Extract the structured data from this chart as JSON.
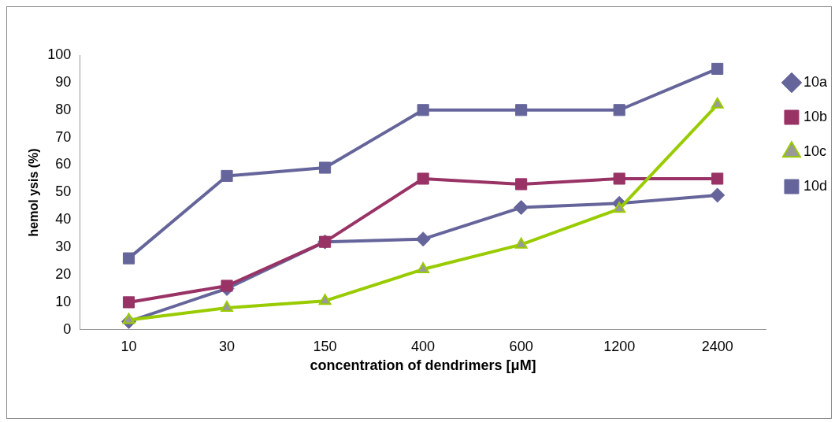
{
  "chart_data": {
    "type": "line",
    "xlabel": "concentration of dendrimers [μM]",
    "ylabel": "hemol ysis (%)",
    "categories": [
      "10",
      "30",
      "150",
      "400",
      "600",
      "1200",
      "2400"
    ],
    "series": [
      {
        "name": "10a",
        "color": "#65659b",
        "marker": "diamond",
        "values": [
          3,
          15,
          32,
          33,
          44.5,
          46,
          49
        ]
      },
      {
        "name": "10b",
        "color": "#993366",
        "marker": "square",
        "values": [
          10,
          16,
          32,
          55,
          53,
          55,
          55
        ]
      },
      {
        "name": "10c",
        "color": "#99cc00",
        "marker": "triangle",
        "values": [
          3.5,
          8,
          10.5,
          22,
          31,
          44,
          82
        ]
      },
      {
        "name": "10d",
        "color": "#65659b",
        "marker": "square",
        "values": [
          26,
          56,
          59,
          80,
          80,
          80,
          95
        ]
      }
    ],
    "ylim": [
      0,
      100
    ],
    "yticks": [
      0,
      10,
      20,
      30,
      40,
      50,
      60,
      70,
      80,
      90,
      100
    ],
    "grid": false,
    "legend": "right",
    "line_style": "solid"
  }
}
